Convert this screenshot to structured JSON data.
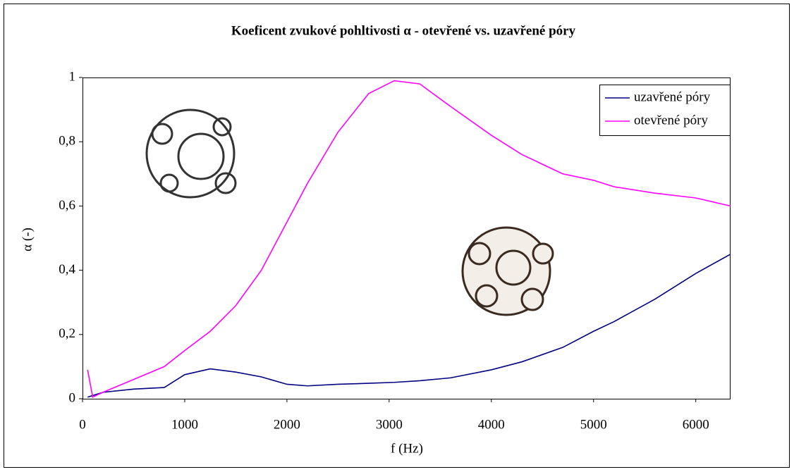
{
  "chart_data": {
    "type": "line",
    "title": "Koeficent zvukové pohltivosti α - otevřené vs. uzavřené póry",
    "x_label": "f (Hz)",
    "y_label": "α (-)",
    "x": [
      50,
      100,
      200,
      500,
      800,
      1000,
      1250,
      1500,
      1750,
      2000,
      2200,
      2500,
      2800,
      3050,
      3300,
      3600,
      4000,
      4300,
      4700,
      5000,
      5200,
      5600,
      6000,
      6340
    ],
    "series": [
      {
        "name": "uzavřené póry",
        "color": "#000080",
        "values": [
          0.005,
          0.01,
          0.02,
          0.03,
          0.035,
          0.075,
          0.093,
          0.083,
          0.068,
          0.045,
          0.04,
          0.045,
          0.048,
          0.051,
          0.056,
          0.065,
          0.09,
          0.115,
          0.16,
          0.21,
          0.24,
          0.31,
          0.39,
          0.45
        ]
      },
      {
        "name": "otevřené póry",
        "color": "#ff00ff",
        "values": [
          0.09,
          0.005,
          0.02,
          0.06,
          0.1,
          0.15,
          0.21,
          0.29,
          0.4,
          0.55,
          0.67,
          0.83,
          0.95,
          0.99,
          0.98,
          0.91,
          0.82,
          0.76,
          0.7,
          0.68,
          0.66,
          0.64,
          0.625,
          0.6
        ]
      }
    ],
    "xlim": [
      0,
      6340
    ],
    "xticks": [
      0,
      1000,
      2000,
      3000,
      4000,
      5000,
      6000
    ],
    "ylim": [
      0,
      1
    ],
    "yticks": [
      0,
      {
        "value": 0.2,
        "label": "0,2"
      },
      {
        "value": 0.4,
        "label": "0,4"
      },
      {
        "value": 0.6,
        "label": "0,6"
      },
      {
        "value": 0.8,
        "label": "0,8"
      },
      1
    ],
    "legend": "upper right",
    "grid": false
  }
}
